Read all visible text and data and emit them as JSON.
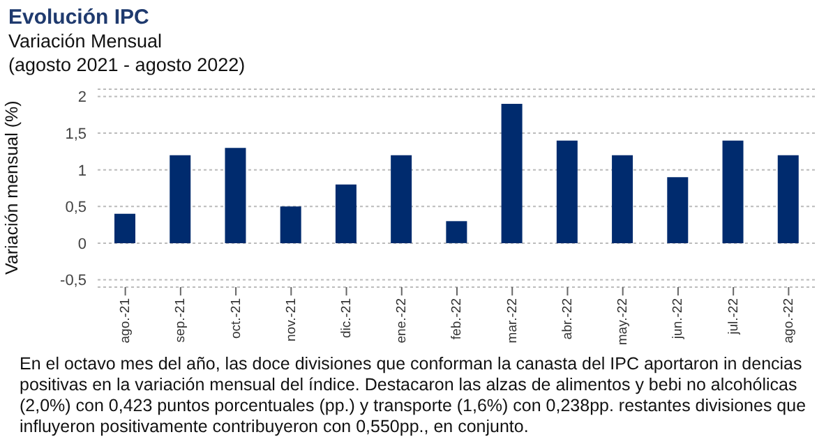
{
  "chart_data": {
    "type": "bar",
    "title": "Evolución IPC",
    "subtitle": "Variación Mensual\n(agosto 2021 - agosto 2022)",
    "ylabel": "Variación mensual (%)",
    "categories": [
      "ago.-21",
      "sep.-21",
      "oct.-21",
      "nov.-21",
      "dic.-21",
      "ene.-22",
      "feb.-22",
      "mar.-22",
      "abr.-22",
      "may.-22",
      "jun.-22",
      "jul.-22",
      "ago.-22"
    ],
    "values": [
      0.4,
      1.2,
      1.3,
      0.5,
      0.8,
      1.2,
      0.3,
      1.9,
      1.4,
      1.2,
      0.9,
      1.4,
      1.2
    ],
    "color": "#002b6e",
    "ylim": [
      -0.6,
      2.1
    ],
    "yticks": [
      {
        "value": -0.5,
        "label": "-0,5"
      },
      0,
      {
        "value": 0.5,
        "label": "0,5"
      },
      1,
      {
        "value": 1.5,
        "label": "1,5"
      },
      2
    ],
    "grid": "y",
    "annotations": [
      "En el octavo mes del año, las doce divisiones que conforman la canasta del IPC aportaron in dencias positivas en la variación mensual del índice. Destacaron las alzas de alimentos y bebi no alcohólicas (2,0%) con 0,423 puntos porcentuales (pp.) y transporte (1,6%) con 0,238pp. restantes divisiones que influyeron positivamente contribuyeron con 0,550pp., en conjunto."
    ]
  }
}
